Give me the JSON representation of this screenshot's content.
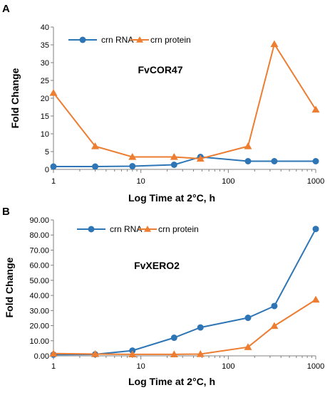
{
  "chart_data": [
    {
      "panel": "A",
      "type": "line",
      "title": "FvCOR47",
      "xlabel": "Log Time at 2°C, h",
      "ylabel": "Fold Change",
      "x_scale": "log",
      "xlim": [
        1,
        1000
      ],
      "ylim": [
        0,
        40
      ],
      "x_ticks": [
        "1",
        "10",
        "100",
        "1000"
      ],
      "y_ticks": [
        "0",
        "5",
        "10",
        "15",
        "20",
        "25",
        "30",
        "35",
        "40"
      ],
      "grid": false,
      "legend": "top-center",
      "series": [
        {
          "name": "crn RNA",
          "color": "#2E75B6",
          "marker": "circle",
          "x": [
            1,
            3,
            8,
            24,
            48,
            168,
            336,
            1000
          ],
          "y": [
            0.8,
            0.8,
            0.9,
            1.3,
            3.5,
            2.3,
            2.3,
            2.3
          ]
        },
        {
          "name": "crn protein",
          "color": "#ED7D31",
          "marker": "triangle",
          "x": [
            1,
            3,
            8,
            24,
            48,
            168,
            336,
            1000
          ],
          "y": [
            21.5,
            6.5,
            3.5,
            3.5,
            3.0,
            6.5,
            35.2,
            16.8
          ]
        }
      ]
    },
    {
      "panel": "B",
      "type": "line",
      "title": "FvXERO2",
      "xlabel": "Log Time at 2°C, h",
      "ylabel": "Fold Change",
      "x_scale": "log",
      "xlim": [
        1,
        1000
      ],
      "ylim": [
        0,
        90
      ],
      "x_ticks": [
        "1",
        "10",
        "100",
        "1000"
      ],
      "y_ticks": [
        "0.00",
        "10.00",
        "20.00",
        "30.00",
        "40.00",
        "50.00",
        "60.00",
        "70.00",
        "80.00",
        "90.00"
      ],
      "grid": false,
      "legend": "top-center",
      "series": [
        {
          "name": "crn RNA",
          "color": "#2E75B6",
          "marker": "circle",
          "x": [
            1,
            3,
            8,
            24,
            48,
            168,
            336,
            1000
          ],
          "y": [
            0.8,
            1.0,
            3.5,
            12.0,
            18.8,
            25.2,
            33.0,
            84.0
          ]
        },
        {
          "name": "crn protein",
          "color": "#ED7D31",
          "marker": "triangle",
          "x": [
            1,
            3,
            8,
            24,
            48,
            168,
            336,
            1000
          ],
          "y": [
            1.5,
            1.2,
            1.0,
            1.0,
            1.2,
            5.8,
            19.8,
            37.2
          ]
        }
      ]
    }
  ]
}
